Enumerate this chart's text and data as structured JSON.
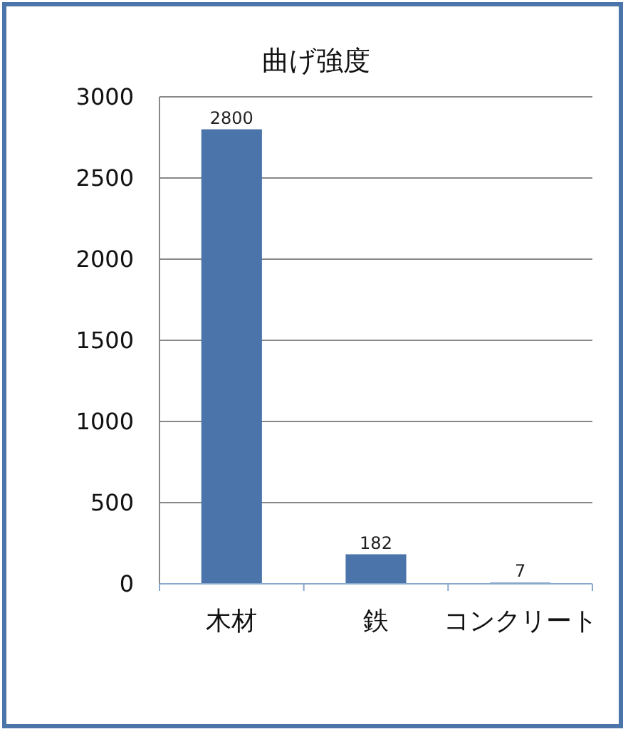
{
  "chart_data": {
    "type": "bar",
    "title": "曲げ強度",
    "categories": [
      "木材",
      "鉄",
      "コンクリート"
    ],
    "values": [
      2800,
      182,
      7
    ],
    "color": "#4a74aa",
    "ylim": [
      0,
      3000
    ],
    "yticks": [
      0,
      500,
      1000,
      1500,
      2000,
      2500,
      3000
    ],
    "grid": "y",
    "data_labels": true
  }
}
